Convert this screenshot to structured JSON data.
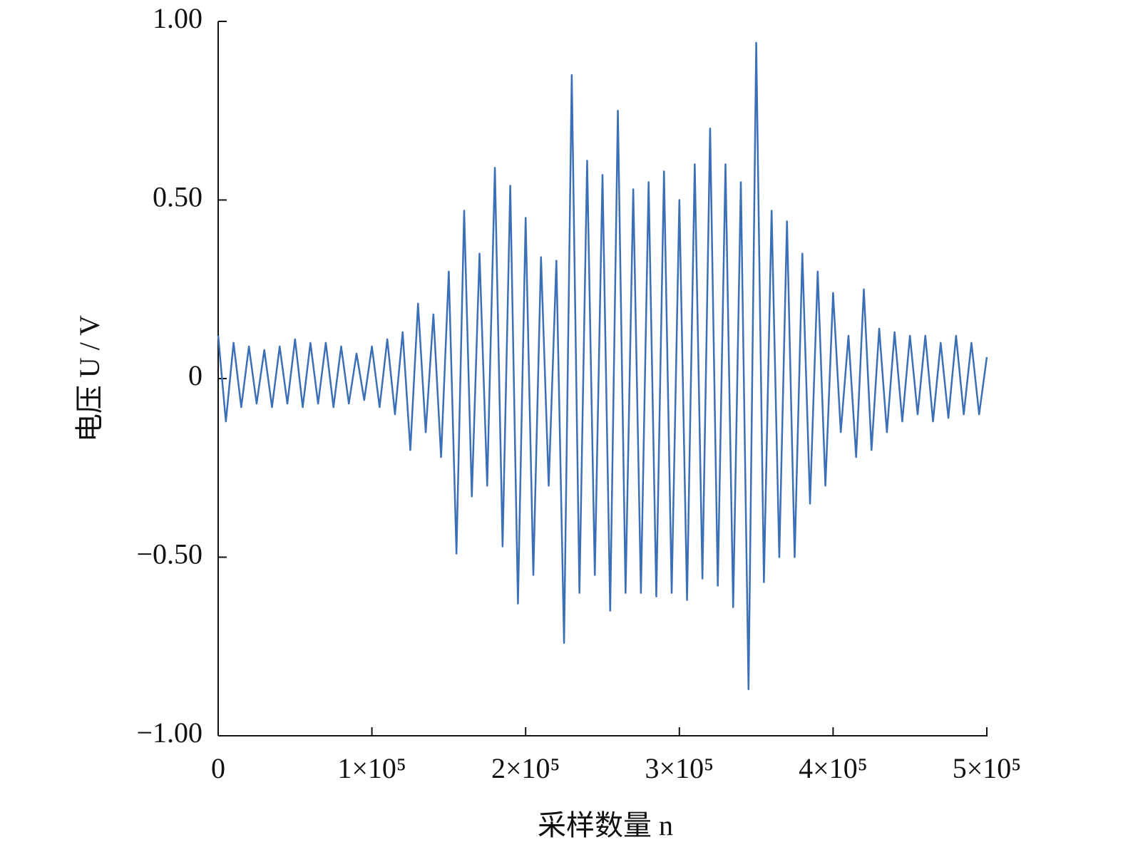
{
  "chart_data": {
    "type": "line",
    "xlabel": "采样数量 n",
    "ylabel": "电压 U / V",
    "x": [
      0,
      5000,
      10000,
      15000,
      20000,
      25000,
      30000,
      35000,
      40000,
      45000,
      50000,
      55000,
      60000,
      65000,
      70000,
      75000,
      80000,
      85000,
      90000,
      95000,
      100000,
      105000,
      110000,
      115000,
      120000,
      125000,
      130000,
      135000,
      140000,
      145000,
      150000,
      155000,
      160000,
      165000,
      170000,
      175000,
      180000,
      185000,
      190000,
      195000,
      200000,
      205000,
      210000,
      215000,
      220000,
      225000,
      230000,
      235000,
      240000,
      245000,
      250000,
      255000,
      260000,
      265000,
      270000,
      275000,
      280000,
      285000,
      290000,
      295000,
      300000,
      305000,
      310000,
      315000,
      320000,
      325000,
      330000,
      335000,
      340000,
      345000,
      350000,
      355000,
      360000,
      365000,
      370000,
      375000,
      380000,
      385000,
      390000,
      395000,
      400000,
      405000,
      410000,
      415000,
      420000,
      425000,
      430000,
      435000,
      440000,
      445000,
      450000,
      455000,
      460000,
      465000,
      470000,
      475000,
      480000,
      485000,
      490000,
      495000,
      500000
    ],
    "series": [
      {
        "name": "电压",
        "color": "#3b6fb6",
        "values": [
          0.12,
          -0.12,
          0.1,
          -0.08,
          0.09,
          -0.07,
          0.08,
          -0.08,
          0.09,
          -0.07,
          0.11,
          -0.08,
          0.1,
          -0.07,
          0.1,
          -0.08,
          0.09,
          -0.07,
          0.07,
          -0.06,
          0.09,
          -0.08,
          0.11,
          -0.1,
          0.13,
          -0.2,
          0.21,
          -0.15,
          0.18,
          -0.22,
          0.3,
          -0.49,
          0.47,
          -0.33,
          0.35,
          -0.3,
          0.59,
          -0.47,
          0.54,
          -0.63,
          0.45,
          -0.55,
          0.34,
          -0.3,
          0.33,
          -0.74,
          0.85,
          -0.6,
          0.61,
          -0.55,
          0.57,
          -0.65,
          0.75,
          -0.6,
          0.53,
          -0.6,
          0.55,
          -0.61,
          0.58,
          -0.6,
          0.5,
          -0.62,
          0.6,
          -0.56,
          0.7,
          -0.58,
          0.6,
          -0.64,
          0.55,
          -0.87,
          0.94,
          -0.57,
          0.47,
          -0.5,
          0.44,
          -0.5,
          0.35,
          -0.35,
          0.3,
          -0.3,
          0.24,
          -0.15,
          0.12,
          -0.22,
          0.25,
          -0.2,
          0.14,
          -0.15,
          0.13,
          -0.12,
          0.12,
          -0.1,
          0.12,
          -0.12,
          0.1,
          -0.11,
          0.12,
          -0.1,
          0.1,
          -0.1,
          0.06
        ]
      }
    ],
    "xlim": [
      0,
      500000
    ],
    "ylim": [
      -1,
      1
    ],
    "xticks": [
      0,
      {
        "value": 100000,
        "label": "1×10⁵"
      },
      {
        "value": 200000,
        "label": "2×10⁵"
      },
      {
        "value": 300000,
        "label": "3×10⁵"
      },
      {
        "value": 400000,
        "label": "4×10⁵"
      },
      {
        "value": 500000,
        "label": "5×10⁵"
      }
    ],
    "yticks": [
      {
        "value": -1,
        "label": "−1.00"
      },
      {
        "value": -0.5,
        "label": "−0.50"
      },
      0,
      {
        "value": 0.5,
        "label": "0.50"
      },
      {
        "value": 1,
        "label": "1.00"
      }
    ],
    "grid": false
  }
}
